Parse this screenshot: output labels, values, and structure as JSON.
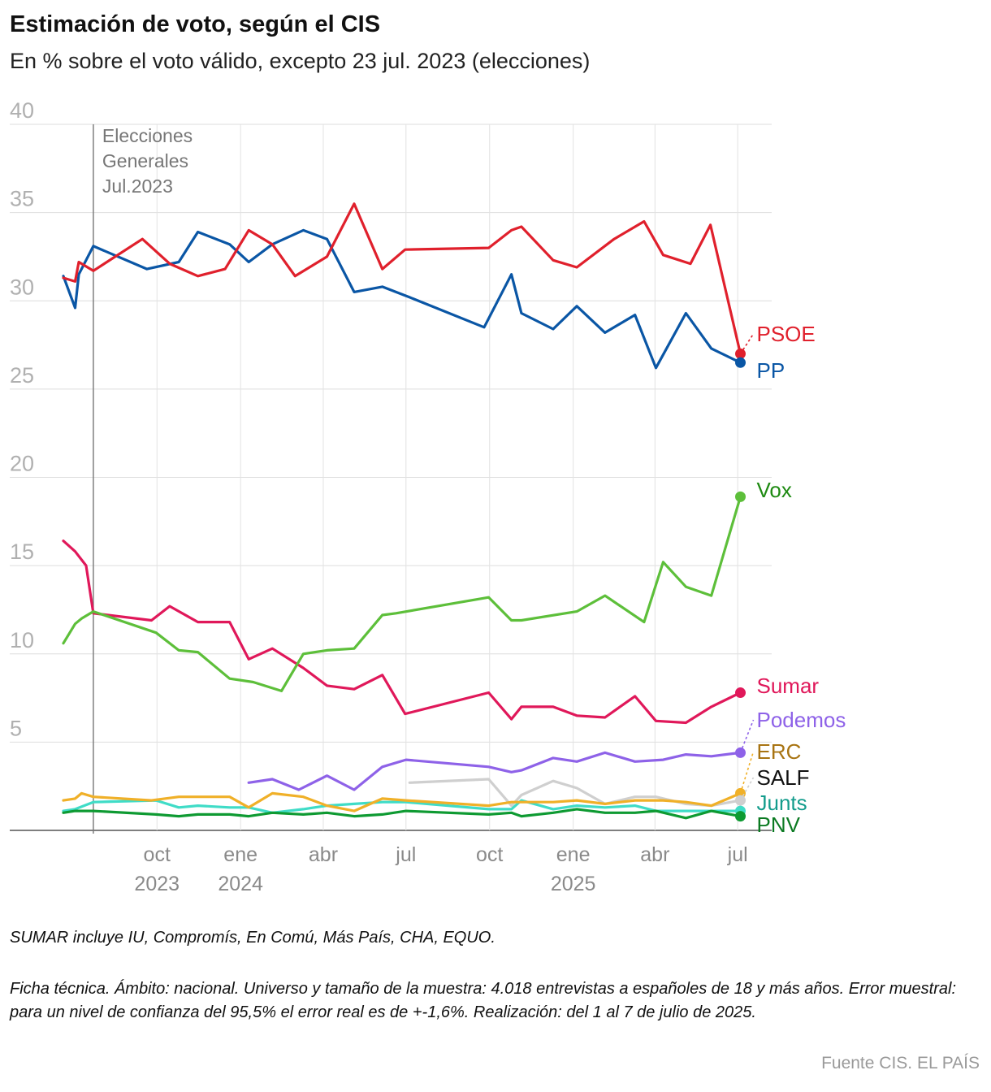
{
  "title": "Estimación de voto, según el CIS",
  "subtitle": "En % sobre el voto válido, excepto 23 jul. 2023 (elecciones)",
  "notes": {
    "sumar": "SUMAR incluye IU, Compromís, En Comú, Más País, CHA, EQUO.",
    "ficha": "Ficha técnica. Ámbito: nacional. Universo y tamaño de la muestra: 4.018 entrevistas a españoles de 18 y más años. Error muestral: para un nivel de confianza del 95,5% el error real es de +-1,6%. Realización: del 1 al 7 de julio de 2025."
  },
  "source": "Fuente CIS. EL PAÍS",
  "chart_data": {
    "type": "line",
    "title": "Estimación de voto, según el CIS",
    "subtitle": "En % sobre el voto válido, excepto 23 jul. 2023 (elecciones)",
    "ylim": [
      0,
      40
    ],
    "yticks": [
      0,
      5,
      10,
      15,
      20,
      25,
      30,
      35,
      40
    ],
    "ytick_labels": [
      "",
      "5",
      "10",
      "15",
      "20",
      "25",
      "30",
      "35",
      "40"
    ],
    "xlim": [
      "2023-06-20",
      "2025-07-25"
    ],
    "x_ticks": [
      {
        "date": "2023-10-01",
        "label": "oct",
        "year": "2023"
      },
      {
        "date": "2024-01-01",
        "label": "ene",
        "year": "2024"
      },
      {
        "date": "2024-04-01",
        "label": "abr",
        "year": ""
      },
      {
        "date": "2024-07-01",
        "label": "jul",
        "year": ""
      },
      {
        "date": "2024-10-01",
        "label": "oct",
        "year": ""
      },
      {
        "date": "2025-01-01",
        "label": "ene",
        "year": "2025"
      },
      {
        "date": "2025-04-01",
        "label": "abr",
        "year": ""
      },
      {
        "date": "2025-07-01",
        "label": "jul",
        "year": ""
      }
    ],
    "grid": true,
    "annotations": [
      {
        "date": "2023-07-23",
        "text": [
          "Elecciones",
          "Generales",
          "Jul.2023"
        ]
      }
    ],
    "series": [
      {
        "name": "PSOE",
        "color": "#e0202c",
        "label_color": "#e0202c",
        "end_value": 27.0,
        "points": [
          [
            "2023-06-20",
            31.3
          ],
          [
            "2023-07-03",
            31.1
          ],
          [
            "2023-07-07",
            32.2
          ],
          [
            "2023-07-23",
            31.7
          ],
          [
            "2023-09-15",
            33.5
          ],
          [
            "2023-10-15",
            32.1
          ],
          [
            "2023-11-15",
            31.4
          ],
          [
            "2023-12-15",
            31.8
          ],
          [
            "2024-01-10",
            34.0
          ],
          [
            "2024-02-05",
            33.2
          ],
          [
            "2024-03-01",
            31.4
          ],
          [
            "2024-04-05",
            32.5
          ],
          [
            "2024-05-05",
            35.5
          ],
          [
            "2024-06-05",
            31.8
          ],
          [
            "2024-06-30",
            32.9
          ],
          [
            "2024-09-30",
            33.0
          ],
          [
            "2024-10-25",
            34.0
          ],
          [
            "2024-11-05",
            34.2
          ],
          [
            "2024-12-10",
            32.3
          ],
          [
            "2025-01-05",
            31.9
          ],
          [
            "2025-02-15",
            33.5
          ],
          [
            "2025-03-20",
            34.5
          ],
          [
            "2025-04-10",
            32.6
          ],
          [
            "2025-05-10",
            32.1
          ],
          [
            "2025-06-01",
            34.3
          ],
          [
            "2025-07-04",
            27.0
          ]
        ]
      },
      {
        "name": "PP",
        "color": "#0a56a5",
        "label_color": "#0a56a5",
        "end_value": 26.5,
        "points": [
          [
            "2023-06-20",
            31.4
          ],
          [
            "2023-07-03",
            29.6
          ],
          [
            "2023-07-07",
            31.5
          ],
          [
            "2023-07-23",
            33.1
          ],
          [
            "2023-09-20",
            31.8
          ],
          [
            "2023-10-25",
            32.2
          ],
          [
            "2023-11-15",
            33.9
          ],
          [
            "2023-12-20",
            33.2
          ],
          [
            "2024-01-10",
            32.2
          ],
          [
            "2024-02-05",
            33.2
          ],
          [
            "2024-03-10",
            34.0
          ],
          [
            "2024-04-05",
            33.5
          ],
          [
            "2024-05-05",
            30.5
          ],
          [
            "2024-06-05",
            30.8
          ],
          [
            "2024-07-05",
            30.2
          ],
          [
            "2024-09-25",
            28.5
          ],
          [
            "2024-10-25",
            31.5
          ],
          [
            "2024-11-05",
            29.3
          ],
          [
            "2024-12-10",
            28.4
          ],
          [
            "2025-01-05",
            29.7
          ],
          [
            "2025-02-05",
            28.2
          ],
          [
            "2025-03-10",
            29.2
          ],
          [
            "2025-04-02",
            26.2
          ],
          [
            "2025-05-05",
            29.3
          ],
          [
            "2025-06-02",
            27.3
          ],
          [
            "2025-07-04",
            26.5
          ]
        ]
      },
      {
        "name": "Vox",
        "color": "#5dbf3a",
        "label_color": "#1e8a12",
        "end_value": 18.9,
        "points": [
          [
            "2023-06-20",
            10.6
          ],
          [
            "2023-07-03",
            11.7
          ],
          [
            "2023-07-10",
            12.0
          ],
          [
            "2023-07-23",
            12.4
          ],
          [
            "2023-09-30",
            11.2
          ],
          [
            "2023-10-25",
            10.2
          ],
          [
            "2023-11-15",
            10.1
          ],
          [
            "2023-12-20",
            8.6
          ],
          [
            "2024-01-15",
            8.4
          ],
          [
            "2024-02-15",
            7.9
          ],
          [
            "2024-03-10",
            10.0
          ],
          [
            "2024-04-05",
            10.2
          ],
          [
            "2024-05-05",
            10.3
          ],
          [
            "2024-06-05",
            12.2
          ],
          [
            "2024-06-20",
            12.3
          ],
          [
            "2024-09-30",
            13.2
          ],
          [
            "2024-10-25",
            11.9
          ],
          [
            "2024-11-05",
            11.9
          ],
          [
            "2025-01-05",
            12.4
          ],
          [
            "2025-02-05",
            13.3
          ],
          [
            "2025-03-20",
            11.8
          ],
          [
            "2025-04-10",
            15.2
          ],
          [
            "2025-05-05",
            13.8
          ],
          [
            "2025-06-02",
            13.3
          ],
          [
            "2025-07-04",
            18.9
          ]
        ]
      },
      {
        "name": "Sumar",
        "color": "#e0185a",
        "label_color": "#e0185a",
        "end_value": 7.8,
        "points": [
          [
            "2023-06-20",
            16.4
          ],
          [
            "2023-07-03",
            15.8
          ],
          [
            "2023-07-15",
            15.0
          ],
          [
            "2023-07-23",
            12.3
          ],
          [
            "2023-09-25",
            11.9
          ],
          [
            "2023-10-15",
            12.7
          ],
          [
            "2023-11-15",
            11.8
          ],
          [
            "2023-12-20",
            11.8
          ],
          [
            "2024-01-10",
            9.7
          ],
          [
            "2024-02-05",
            10.3
          ],
          [
            "2024-03-10",
            9.2
          ],
          [
            "2024-04-05",
            8.2
          ],
          [
            "2024-05-05",
            8.0
          ],
          [
            "2024-06-05",
            8.8
          ],
          [
            "2024-06-30",
            6.6
          ],
          [
            "2024-09-30",
            7.8
          ],
          [
            "2024-10-25",
            6.3
          ],
          [
            "2024-11-05",
            7.0
          ],
          [
            "2024-12-10",
            7.0
          ],
          [
            "2025-01-05",
            6.5
          ],
          [
            "2025-02-05",
            6.4
          ],
          [
            "2025-03-10",
            7.6
          ],
          [
            "2025-04-02",
            6.2
          ],
          [
            "2025-05-05",
            6.1
          ],
          [
            "2025-06-02",
            7.0
          ],
          [
            "2025-07-04",
            7.8
          ]
        ]
      },
      {
        "name": "Podemos",
        "color": "#8e62e8",
        "label_color": "#8e62e8",
        "end_value": 4.4,
        "points": [
          [
            "2024-01-10",
            2.7
          ],
          [
            "2024-02-05",
            2.9
          ],
          [
            "2024-03-05",
            2.3
          ],
          [
            "2024-04-05",
            3.1
          ],
          [
            "2024-05-05",
            2.3
          ],
          [
            "2024-06-05",
            3.6
          ],
          [
            "2024-07-01",
            4.0
          ],
          [
            "2024-09-30",
            3.6
          ],
          [
            "2024-10-25",
            3.3
          ],
          [
            "2024-11-05",
            3.4
          ],
          [
            "2024-12-10",
            4.1
          ],
          [
            "2025-01-05",
            3.9
          ],
          [
            "2025-02-05",
            4.4
          ],
          [
            "2025-03-10",
            3.9
          ],
          [
            "2025-04-10",
            4.0
          ],
          [
            "2025-05-05",
            4.3
          ],
          [
            "2025-06-02",
            4.2
          ],
          [
            "2025-07-04",
            4.4
          ]
        ]
      },
      {
        "name": "ERC",
        "color": "#f0b028",
        "label_color": "#a87412",
        "end_value": 2.1,
        "points": [
          [
            "2023-06-20",
            1.7
          ],
          [
            "2023-07-03",
            1.8
          ],
          [
            "2023-07-10",
            2.1
          ],
          [
            "2023-07-23",
            1.9
          ],
          [
            "2023-09-25",
            1.7
          ],
          [
            "2023-10-25",
            1.9
          ],
          [
            "2023-11-15",
            1.9
          ],
          [
            "2023-12-20",
            1.9
          ],
          [
            "2024-01-10",
            1.3
          ],
          [
            "2024-02-05",
            2.1
          ],
          [
            "2024-03-10",
            1.9
          ],
          [
            "2024-04-05",
            1.4
          ],
          [
            "2024-05-05",
            1.1
          ],
          [
            "2024-06-05",
            1.8
          ],
          [
            "2024-07-01",
            1.7
          ],
          [
            "2024-09-30",
            1.4
          ],
          [
            "2024-10-25",
            1.6
          ],
          [
            "2024-11-05",
            1.6
          ],
          [
            "2024-12-10",
            1.6
          ],
          [
            "2025-01-05",
            1.7
          ],
          [
            "2025-02-05",
            1.5
          ],
          [
            "2025-03-10",
            1.7
          ],
          [
            "2025-04-10",
            1.7
          ],
          [
            "2025-05-05",
            1.6
          ],
          [
            "2025-06-02",
            1.4
          ],
          [
            "2025-07-04",
            2.1
          ]
        ]
      },
      {
        "name": "SALF",
        "color": "#cfcfcf",
        "label_color": "#111111",
        "end_value": 1.7,
        "points": [
          [
            "2024-07-05",
            2.7
          ],
          [
            "2024-09-30",
            2.9
          ],
          [
            "2024-10-25",
            1.4
          ],
          [
            "2024-11-05",
            2.0
          ],
          [
            "2024-12-10",
            2.8
          ],
          [
            "2025-01-05",
            2.4
          ],
          [
            "2025-02-05",
            1.5
          ],
          [
            "2025-03-10",
            1.9
          ],
          [
            "2025-04-02",
            1.9
          ],
          [
            "2025-05-05",
            1.5
          ],
          [
            "2025-06-02",
            1.4
          ],
          [
            "2025-07-04",
            1.7
          ]
        ]
      },
      {
        "name": "Junts",
        "color": "#3fdcc7",
        "label_color": "#139c8c",
        "end_value": 1.1,
        "points": [
          [
            "2023-06-20",
            1.1
          ],
          [
            "2023-07-03",
            1.2
          ],
          [
            "2023-07-23",
            1.6
          ],
          [
            "2023-09-30",
            1.7
          ],
          [
            "2023-10-25",
            1.3
          ],
          [
            "2023-11-15",
            1.4
          ],
          [
            "2023-12-20",
            1.3
          ],
          [
            "2024-01-10",
            1.3
          ],
          [
            "2024-02-05",
            1.0
          ],
          [
            "2024-03-10",
            1.2
          ],
          [
            "2024-04-05",
            1.4
          ],
          [
            "2024-05-05",
            1.5
          ],
          [
            "2024-06-05",
            1.6
          ],
          [
            "2024-07-01",
            1.6
          ],
          [
            "2024-09-30",
            1.2
          ],
          [
            "2024-10-25",
            1.2
          ],
          [
            "2024-11-05",
            1.7
          ],
          [
            "2024-12-10",
            1.2
          ],
          [
            "2025-01-05",
            1.4
          ],
          [
            "2025-02-05",
            1.3
          ],
          [
            "2025-03-10",
            1.4
          ],
          [
            "2025-04-02",
            1.1
          ],
          [
            "2025-05-05",
            1.1
          ],
          [
            "2025-06-02",
            1.1
          ],
          [
            "2025-07-04",
            1.1
          ]
        ]
      },
      {
        "name": "PNV",
        "color": "#0e9a32",
        "label_color": "#0b7a22",
        "end_value": 0.8,
        "points": [
          [
            "2023-06-20",
            1.0
          ],
          [
            "2023-07-03",
            1.1
          ],
          [
            "2023-07-23",
            1.1
          ],
          [
            "2023-09-30",
            0.9
          ],
          [
            "2023-10-25",
            0.8
          ],
          [
            "2023-11-15",
            0.9
          ],
          [
            "2023-12-20",
            0.9
          ],
          [
            "2024-01-10",
            0.8
          ],
          [
            "2024-02-05",
            1.0
          ],
          [
            "2024-03-10",
            0.9
          ],
          [
            "2024-04-05",
            1.0
          ],
          [
            "2024-05-05",
            0.8
          ],
          [
            "2024-06-05",
            0.9
          ],
          [
            "2024-07-01",
            1.1
          ],
          [
            "2024-09-30",
            0.9
          ],
          [
            "2024-10-25",
            1.0
          ],
          [
            "2024-11-05",
            0.8
          ],
          [
            "2024-12-10",
            1.0
          ],
          [
            "2025-01-05",
            1.2
          ],
          [
            "2025-02-05",
            1.0
          ],
          [
            "2025-03-10",
            1.0
          ],
          [
            "2025-04-02",
            1.1
          ],
          [
            "2025-05-05",
            0.7
          ],
          [
            "2025-06-02",
            1.1
          ],
          [
            "2025-07-04",
            0.8
          ]
        ]
      }
    ]
  }
}
